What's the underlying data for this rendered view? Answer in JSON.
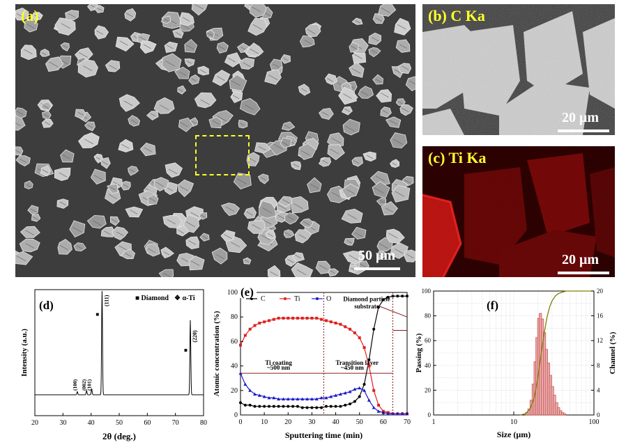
{
  "panel_a": {
    "label": "(a)",
    "scale_label": "50 μm"
  },
  "panel_b": {
    "label": "(b) C Ka",
    "scale_label": "20 μm"
  },
  "panel_c": {
    "label": "(c) Ti Ka",
    "scale_label": "20 μm"
  },
  "colors": {
    "label_yellow": "#ffff2e",
    "ti_red": "#e0201c",
    "sem_gray": "#3d3d3d",
    "c_series": "#000000",
    "ti_series": "#e02020",
    "o_series": "#1a1acc",
    "bar_fill": "#e8a8a8",
    "bar_edge": "#c04040",
    "cumulative": "#808000"
  },
  "chart_data": [
    {
      "id": "d",
      "type": "line",
      "panel_label": "(d)",
      "xlabel": "2θ (deg.)",
      "ylabel": "Intensity (a.u.)",
      "xlim": [
        20,
        80
      ],
      "x_ticks": [
        20,
        30,
        40,
        50,
        60,
        70,
        80
      ],
      "legend": [
        {
          "marker": "■",
          "name": "Diamond"
        },
        {
          "marker": "❖",
          "name": "α-Ti"
        }
      ],
      "peaks": [
        {
          "x": 35.1,
          "height": 0.03,
          "label": "(100)",
          "marker": "❖"
        },
        {
          "x": 38.4,
          "height": 0.04,
          "label": "(002)",
          "marker": "❖"
        },
        {
          "x": 40.2,
          "height": 0.06,
          "label": "(101)",
          "marker": "❖"
        },
        {
          "x": 43.9,
          "height": 1.0,
          "label": "(111)",
          "marker": "■"
        },
        {
          "x": 75.3,
          "height": 0.72,
          "label": "(220)",
          "marker": "■"
        }
      ]
    },
    {
      "id": "e",
      "type": "line",
      "panel_label": "(e)",
      "xlabel": "Sputtering time (min)",
      "ylabel": "Atomic concentration (%)",
      "xlim": [
        0,
        70
      ],
      "ylim": [
        0,
        100
      ],
      "x_ticks": [
        0,
        10,
        20,
        30,
        40,
        50,
        60,
        70
      ],
      "y_ticks": [
        0,
        20,
        40,
        60,
        80,
        100
      ],
      "annotations": {
        "diamond": "Diamond particle",
        "substrate": "substrate",
        "ti_coating": "Ti coating",
        "ti_thickness": "~500 nm",
        "transition": "Transition layer",
        "transition_thickness": "~450 nm"
      },
      "boundaries": [
        35,
        64
      ],
      "series": [
        {
          "name": "C",
          "x": [
            0,
            2,
            4,
            6,
            8,
            10,
            12,
            14,
            16,
            18,
            20,
            22,
            24,
            26,
            28,
            30,
            32,
            34,
            36,
            38,
            40,
            42,
            44,
            46,
            48,
            50,
            52,
            54,
            56,
            58,
            60,
            62,
            64,
            66,
            68,
            70
          ],
          "values": [
            10,
            8,
            8,
            7,
            7,
            7,
            7,
            7,
            7,
            7,
            7,
            7,
            7,
            6,
            6,
            6,
            6,
            6,
            7,
            7,
            7,
            7,
            8,
            9,
            11,
            15,
            25,
            45,
            70,
            88,
            94,
            96,
            97,
            97,
            97,
            97
          ]
        },
        {
          "name": "Ti",
          "x": [
            0,
            2,
            4,
            6,
            8,
            10,
            12,
            14,
            16,
            18,
            20,
            22,
            24,
            26,
            28,
            30,
            32,
            34,
            36,
            38,
            40,
            42,
            44,
            46,
            48,
            50,
            52,
            54,
            56,
            58,
            60,
            62,
            64,
            66,
            68,
            70
          ],
          "values": [
            57,
            65,
            70,
            73,
            75,
            76,
            77,
            78,
            79,
            79,
            79,
            79,
            79,
            79,
            79,
            79,
            79,
            78,
            77,
            76,
            75,
            74,
            72,
            70,
            67,
            63,
            55,
            40,
            20,
            8,
            3,
            2,
            1,
            1,
            1,
            1
          ]
        },
        {
          "name": "O",
          "x": [
            0,
            2,
            4,
            6,
            8,
            10,
            12,
            14,
            16,
            18,
            20,
            22,
            24,
            26,
            28,
            30,
            32,
            34,
            36,
            38,
            40,
            42,
            44,
            46,
            48,
            50,
            52,
            54,
            56,
            58,
            60,
            62,
            64,
            66,
            68,
            70
          ],
          "values": [
            34,
            25,
            20,
            17,
            16,
            15,
            14,
            14,
            13,
            13,
            13,
            13,
            13,
            13,
            13,
            13,
            13,
            14,
            14,
            15,
            16,
            17,
            18,
            19,
            21,
            22,
            20,
            12,
            6,
            3,
            2,
            1,
            1,
            1,
            1,
            1
          ]
        }
      ]
    },
    {
      "id": "f",
      "type": "bar",
      "panel_label": "(f)",
      "xlabel": "Size (μm)",
      "ylabel": "Passing (%)",
      "y2label": "Channel (%)",
      "xlim": [
        1,
        100
      ],
      "x_scale": "log",
      "x_ticks": [
        1,
        10,
        100
      ],
      "ylim": [
        0,
        100
      ],
      "y_ticks": [
        0,
        20,
        40,
        60,
        80,
        100
      ],
      "y2lim": [
        0,
        20
      ],
      "y2_ticks": [
        0,
        4,
        8,
        12,
        16,
        20
      ],
      "bins": [
        {
          "x": 14.5,
          "channel": 0.4
        },
        {
          "x": 15.5,
          "channel": 1.0
        },
        {
          "x": 16.5,
          "channel": 2.4
        },
        {
          "x": 17.5,
          "channel": 5.0
        },
        {
          "x": 18.5,
          "channel": 8.6
        },
        {
          "x": 19.5,
          "channel": 12.5
        },
        {
          "x": 20.5,
          "channel": 15.6
        },
        {
          "x": 21.5,
          "channel": 16.4
        },
        {
          "x": 22.8,
          "channel": 15.5
        },
        {
          "x": 24.2,
          "channel": 13.3
        },
        {
          "x": 25.6,
          "channel": 10.6
        },
        {
          "x": 27.2,
          "channel": 8.4
        },
        {
          "x": 28.8,
          "channel": 6.4
        },
        {
          "x": 30.5,
          "channel": 4.6
        },
        {
          "x": 32.3,
          "channel": 3.2
        },
        {
          "x": 34.3,
          "channel": 2.0
        },
        {
          "x": 36.3,
          "channel": 1.2
        },
        {
          "x": 38.5,
          "channel": 0.7
        },
        {
          "x": 40.8,
          "channel": 0.4
        },
        {
          "x": 43.2,
          "channel": 0.2
        }
      ],
      "cumulative": {
        "x": [
          12,
          14,
          16,
          18,
          20,
          22,
          24,
          26,
          28,
          30,
          33,
          36,
          40,
          45,
          50,
          60,
          70
        ],
        "values": [
          0,
          1,
          5,
          14,
          30,
          50,
          66,
          79,
          87,
          92,
          96,
          98,
          99,
          100,
          100,
          100,
          100
        ]
      }
    }
  ]
}
